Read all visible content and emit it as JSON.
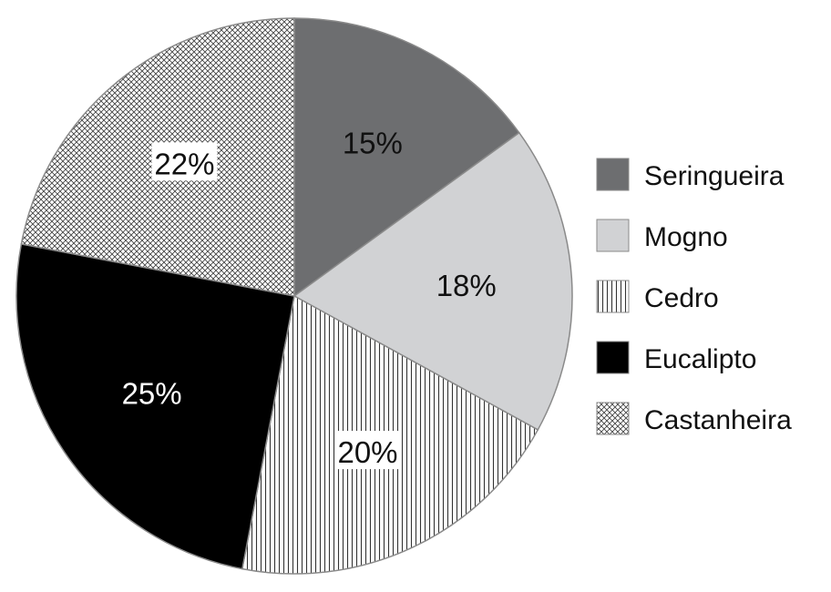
{
  "chart_data": {
    "type": "pie",
    "title": "",
    "slices": [
      {
        "label": "Seringueira",
        "value": 15,
        "value_label": "15%",
        "color": "#6d6e70",
        "pattern": "solid",
        "label_color": "#111111",
        "label_bg": "none"
      },
      {
        "label": "Mogno",
        "value": 18,
        "value_label": "18%",
        "color": "#d1d2d4",
        "pattern": "solid",
        "label_color": "#111111",
        "label_bg": "none"
      },
      {
        "label": "Cedro",
        "value": 20,
        "value_label": "20%",
        "color": "#ffffff",
        "pattern": "vertical-lines",
        "label_color": "#111111",
        "label_bg": "#ffffff"
      },
      {
        "label": "Eucalipto",
        "value": 25,
        "value_label": "25%",
        "color": "#000000",
        "pattern": "solid",
        "label_color": "#ffffff",
        "label_bg": "none"
      },
      {
        "label": "Castanheira",
        "value": 22,
        "value_label": "22%",
        "color": "#ffffff",
        "pattern": "crosshatch",
        "label_color": "#111111",
        "label_bg": "#ffffff"
      }
    ],
    "legend": {
      "placement": "right"
    }
  }
}
